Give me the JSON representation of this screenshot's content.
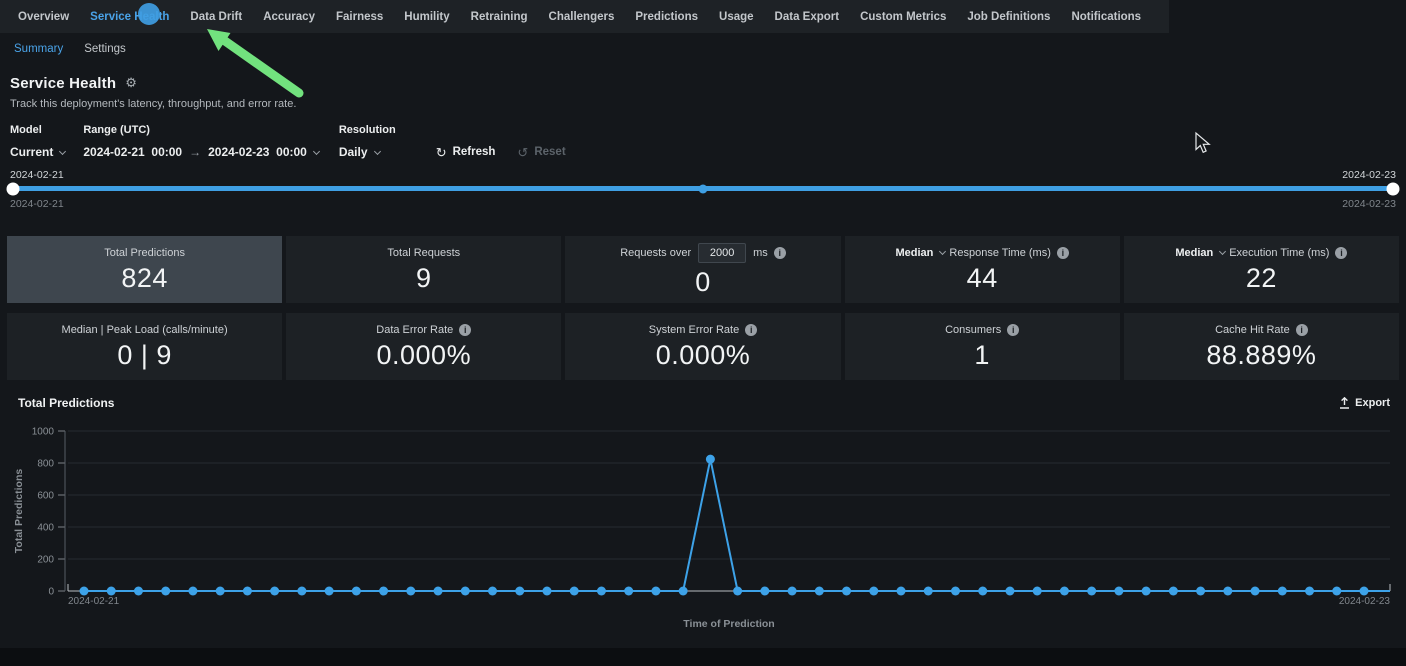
{
  "nav": {
    "items": [
      {
        "label": "Overview",
        "active": false
      },
      {
        "label": "Service Health",
        "active": true
      },
      {
        "label": "Data Drift",
        "active": false
      },
      {
        "label": "Accuracy",
        "active": false
      },
      {
        "label": "Fairness",
        "active": false
      },
      {
        "label": "Humility",
        "active": false
      },
      {
        "label": "Retraining",
        "active": false
      },
      {
        "label": "Challengers",
        "active": false
      },
      {
        "label": "Predictions",
        "active": false
      },
      {
        "label": "Usage",
        "active": false
      },
      {
        "label": "Data Export",
        "active": false
      },
      {
        "label": "Custom Metrics",
        "active": false
      },
      {
        "label": "Job Definitions",
        "active": false
      },
      {
        "label": "Notifications",
        "active": false
      }
    ]
  },
  "subnav": {
    "items": [
      {
        "label": "Summary",
        "active": true
      },
      {
        "label": "Settings",
        "active": false
      }
    ]
  },
  "header": {
    "title": "Service Health",
    "subtitle": "Track this deployment's latency, throughput, and error rate."
  },
  "controls": {
    "model": {
      "label": "Model",
      "value": "Current"
    },
    "range": {
      "label": "Range (UTC)",
      "start": "2024-02-21  00:00",
      "arrow": "→",
      "end": "2024-02-23  00:00"
    },
    "resolution": {
      "label": "Resolution",
      "value": "Daily"
    },
    "refresh_label": "Refresh",
    "reset_label": "Reset"
  },
  "slider": {
    "start_label": "2024-02-21",
    "end_label": "2024-02-23",
    "start_sublabel": "2024-02-21",
    "end_sublabel": "2024-02-23"
  },
  "tiles": [
    {
      "label": "Total Predictions",
      "value": "824",
      "selected": true
    },
    {
      "label": "Total Requests",
      "value": "9",
      "selected": false
    },
    {
      "label_prefix": "Requests over",
      "input_value": "2000",
      "label_suffix": "ms",
      "value": "0",
      "has_info": true
    },
    {
      "agg": "Median",
      "label": "Response Time (ms)",
      "value": "44",
      "has_info": true
    },
    {
      "agg": "Median",
      "label": "Execution Time (ms)",
      "value": "22",
      "has_info": true
    },
    {
      "label": "Median | Peak Load (calls/minute)",
      "value": "0 | 9"
    },
    {
      "label": "Data Error Rate",
      "value": "0.000%",
      "has_info": true
    },
    {
      "label": "System Error Rate",
      "value": "0.000%",
      "has_info": true
    },
    {
      "label": "Consumers",
      "value": "1",
      "has_info": true
    },
    {
      "label": "Cache Hit Rate",
      "value": "88.889%",
      "has_info": true
    }
  ],
  "chart_header": {
    "title": "Total Predictions",
    "export_label": "Export"
  },
  "chart_data": {
    "type": "line",
    "title": "Total Predictions",
    "xlabel": "Time of Prediction",
    "ylabel": "Total Predictions",
    "x_start_label": "2024-02-21",
    "x_end_label": "2024-02-23",
    "x_range": [
      "2024-02-21 00:00",
      "2024-02-23 00:00"
    ],
    "ylim": [
      0,
      1000
    ],
    "y_ticks": [
      0,
      200,
      400,
      600,
      800,
      1000
    ],
    "grid": true,
    "legend": "none",
    "line_color": "#3da2e8",
    "values": [
      0,
      0,
      0,
      0,
      0,
      0,
      0,
      0,
      0,
      0,
      0,
      0,
      0,
      0,
      0,
      0,
      0,
      0,
      0,
      0,
      0,
      0,
      0,
      824,
      0,
      0,
      0,
      0,
      0,
      0,
      0,
      0,
      0,
      0,
      0,
      0,
      0,
      0,
      0,
      0,
      0,
      0,
      0,
      0,
      0,
      0,
      0,
      0
    ],
    "peak": {
      "index": 23,
      "value": 824,
      "approx_time": "2024-02-22"
    }
  },
  "colors": {
    "accent_blue": "#4aa3e8",
    "slider_blue": "#3f9fe3",
    "chart_line_blue": "#3da2e8",
    "annotation_arrow_green": "#72e27e",
    "click_indicator_blue": "#3f9de2",
    "selected_tile_bg": "#3e464e"
  }
}
